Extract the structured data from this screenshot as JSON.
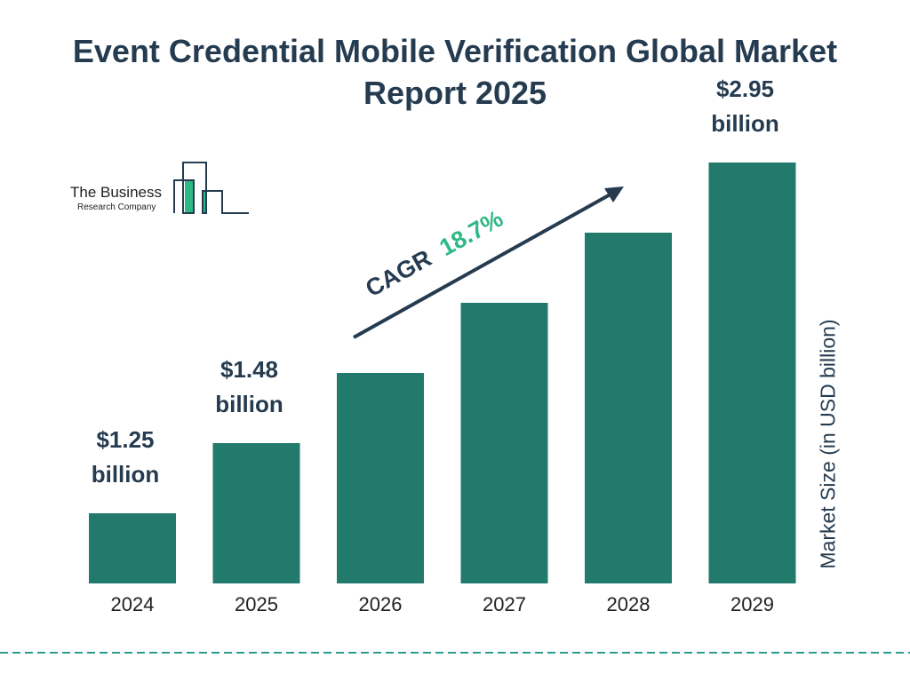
{
  "chart_data": {
    "type": "bar",
    "title": "Event Credential Mobile Verification Global Market Report 2025",
    "categories": [
      "2024",
      "2025",
      "2026",
      "2027",
      "2028",
      "2029"
    ],
    "values": [
      1.25,
      1.48,
      1.76,
      2.09,
      2.48,
      2.95
    ],
    "data_labels": [
      {
        "index": 0,
        "line1": "$1.25",
        "line2": "billion"
      },
      {
        "index": 1,
        "line1": "$1.48",
        "line2": "billion"
      },
      {
        "index": 5,
        "line1": "$2.95",
        "line2": "billion"
      }
    ],
    "xlabel": "",
    "ylabel": "Market Size (in USD billion)",
    "grid": false,
    "bar_color": "#217a6b",
    "annotation": {
      "prefix": "CAGR",
      "value": "18.7%",
      "prefix_color": "#253b50",
      "value_color": "#2eb886"
    }
  },
  "logo": {
    "line1": "The Business",
    "line2": "Research Company"
  },
  "colors": {
    "title": "#253b50",
    "dashed_line": "#2a9d8f"
  }
}
